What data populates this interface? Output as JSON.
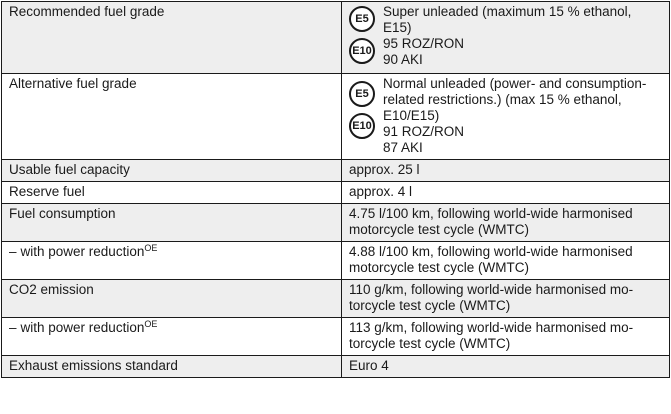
{
  "rows": [
    {
      "label": "Recommended fuel grade",
      "badges": [
        "E5",
        "E10"
      ],
      "lines": [
        "Super unleaded (maximum 15 % ethanol,",
        "E15)",
        "95 ROZ/RON",
        "90 AKI"
      ]
    },
    {
      "label": "Alternative fuel grade",
      "badges": [
        "E5",
        "E10"
      ],
      "lines": [
        "Normal unleaded (power- and consumption-",
        "related restrictions.) (max 15 % ethanol,",
        "E10/E15)",
        "91 ROZ/RON",
        "87 AKI"
      ]
    },
    {
      "label": "Usable fuel capacity",
      "value": "approx. 25 l"
    },
    {
      "label": "Reserve fuel",
      "value": "approx. 4 l"
    },
    {
      "label": "Fuel consumption",
      "lines": [
        "4.75 l/100 km, following world-wide harmonised",
        "motorcycle test cycle (WMTC)"
      ]
    },
    {
      "dash": "–",
      "label": "with power reduction",
      "sup": "OE",
      "lines": [
        "4.88 l/100 km, following world-wide harmonised",
        "motorcycle test cycle (WMTC)"
      ]
    },
    {
      "label": "CO2 emission",
      "lines": [
        "110 g/km, following world-wide harmonised mo-",
        "torcycle test cycle (WMTC)"
      ]
    },
    {
      "dash": "–",
      "label": "with power reduction",
      "sup": "OE",
      "lines": [
        "113 g/km, following world-wide harmonised mo-",
        "torcycle test cycle (WMTC)"
      ]
    },
    {
      "label": "Exhaust emissions standard",
      "value": "Euro 4"
    }
  ]
}
